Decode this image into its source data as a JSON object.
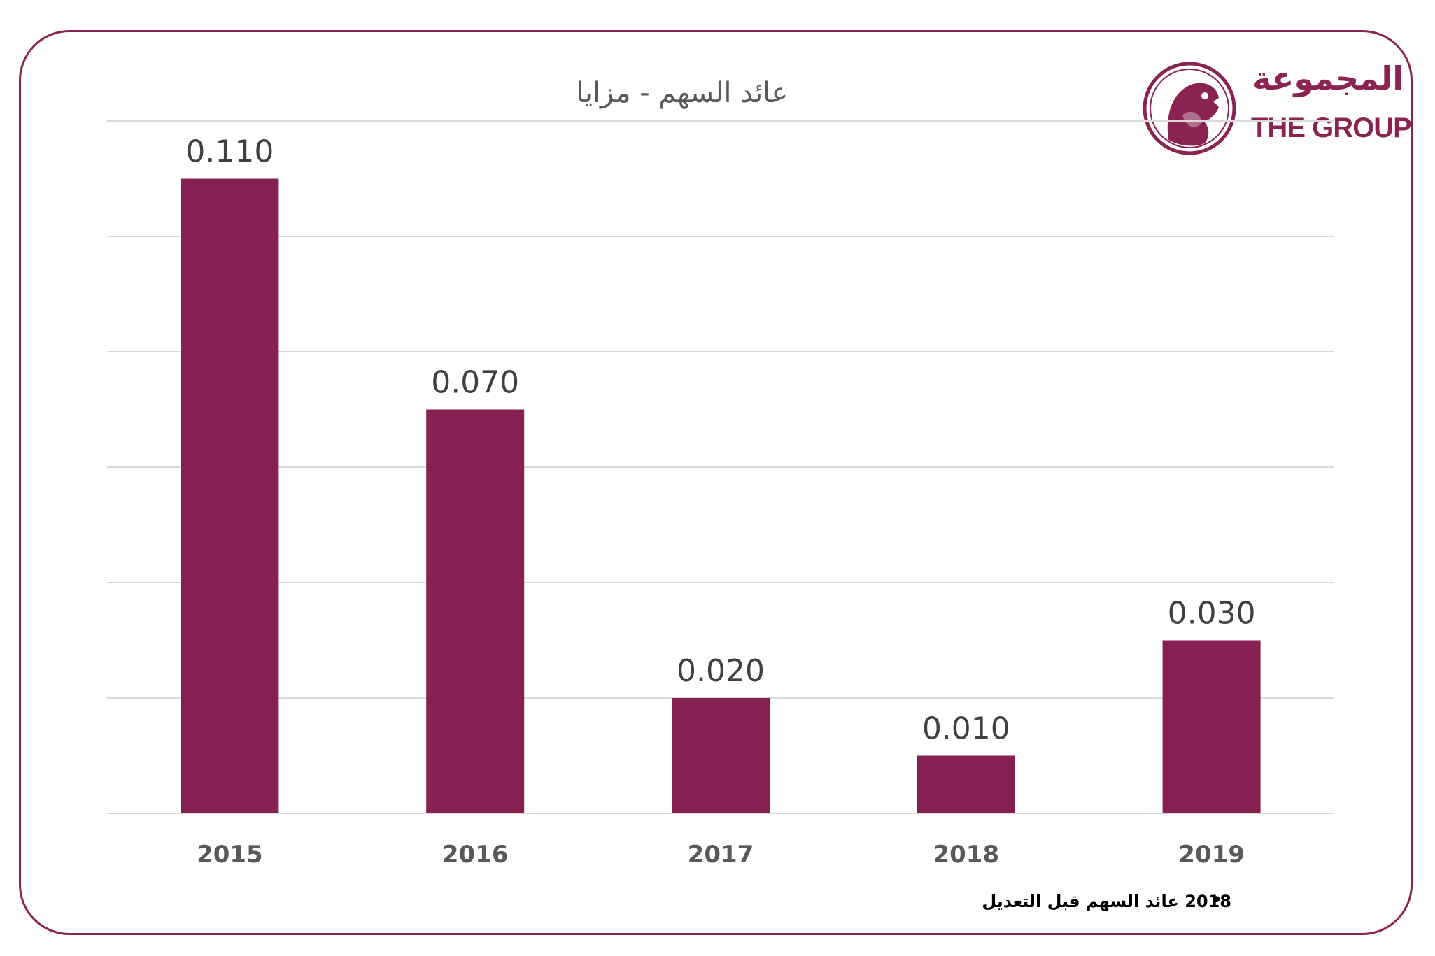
{
  "logo": {
    "arabic": "المجموعة",
    "english": "THE GROUP",
    "icon": "falcon-emblem-icon",
    "color": "#8a2252"
  },
  "footnote": {
    "bullet": "•",
    "text": "2018 عائد السهم قبل التعديل"
  },
  "colors": {
    "bar": "#862051",
    "frame": "#8a2252",
    "grid": "#d9d9d9",
    "label": "#404040",
    "tick": "#595959"
  },
  "chart_data": {
    "type": "bar",
    "title": "عائد السهم - مزايا",
    "categories": [
      "2015",
      "2016",
      "2017",
      "2018",
      "2019"
    ],
    "values": [
      0.11,
      0.07,
      0.02,
      0.01,
      0.03
    ],
    "data_labels": [
      "0.110",
      "0.070",
      "0.020",
      "0.010",
      "0.030"
    ],
    "ylim": [
      0,
      0.12
    ],
    "y_gridline_step": 0.02,
    "grid": true,
    "y_axis_labels_shown": false,
    "legend": "none"
  }
}
